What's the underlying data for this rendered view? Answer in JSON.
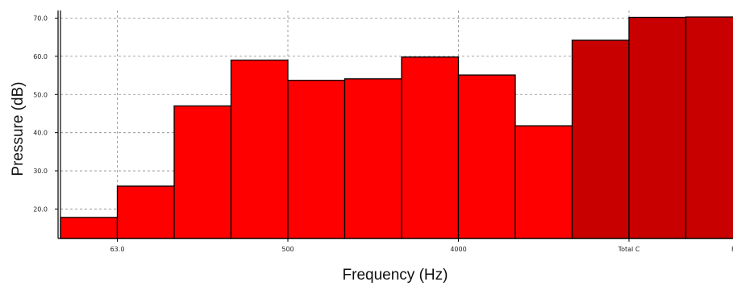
{
  "chart_data": {
    "type": "bar",
    "xlabel": "Frequency (Hz)",
    "ylabel": "Pressure (dB)",
    "ylim": [
      12.5,
      72.0
    ],
    "y_ticks": [
      "70.0",
      "60.0",
      "50.0",
      "40.0",
      "30.0",
      "20.0"
    ],
    "y_tick_values": [
      70,
      60,
      50,
      40,
      30,
      20
    ],
    "x_tick_labels": [
      {
        "label": "63.0",
        "bar_index": 1
      },
      {
        "label": "500",
        "bar_index": 4
      },
      {
        "label": "4000",
        "bar_index": 7
      },
      {
        "label": "Total C",
        "bar_index": 10
      },
      {
        "label": "Freq [H",
        "bar_index": 12
      }
    ],
    "grid": true,
    "values": [
      17.8,
      26.0,
      47.0,
      59.0,
      53.7,
      54.1,
      59.8,
      55.1,
      41.8,
      64.2,
      70.2,
      70.3
    ],
    "bar_roles": [
      "band",
      "band",
      "band",
      "band",
      "band",
      "band",
      "band",
      "band",
      "band",
      "total",
      "total",
      "total"
    ],
    "colors": {
      "band": "#ff0000",
      "total": "#c80000",
      "grid": "#8a8a8a",
      "axis": "#000000",
      "outline": "#000000"
    }
  }
}
